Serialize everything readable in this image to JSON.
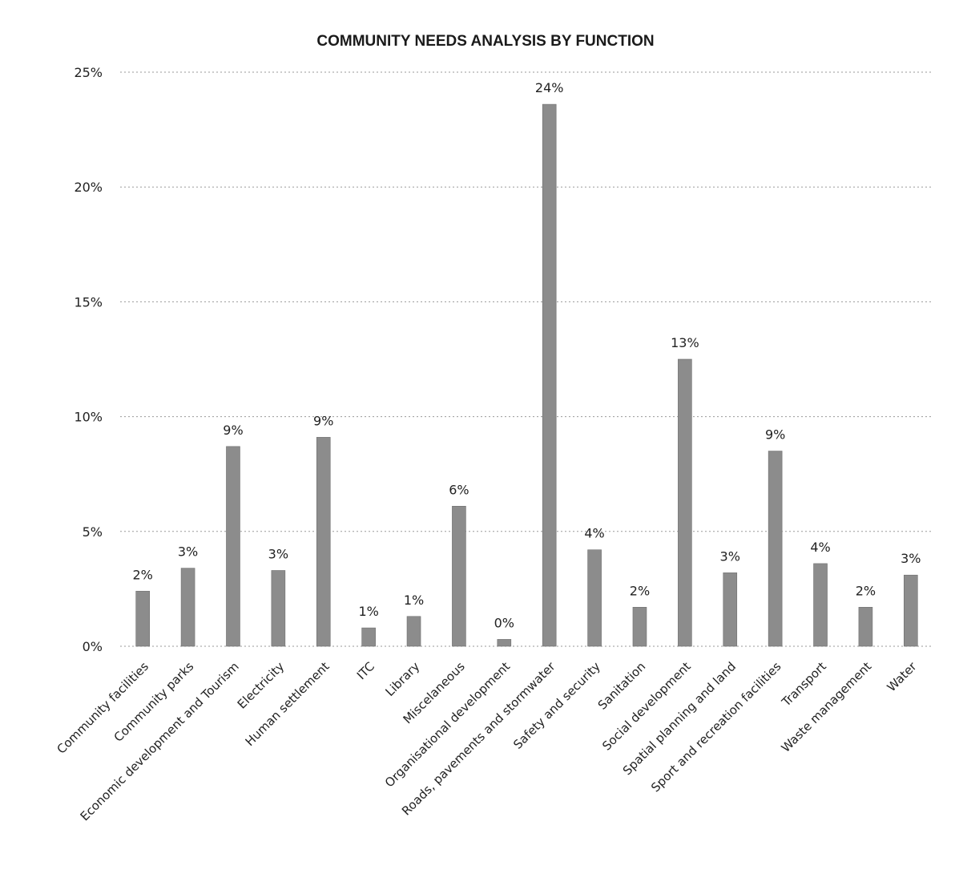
{
  "chart_data": {
    "type": "bar",
    "title": "COMMUNITY NEEDS ANALYSIS BY FUNCTION",
    "xlabel": "",
    "ylabel": "",
    "ylim": [
      0,
      25
    ],
    "yticks": [
      "0%",
      "5%",
      "10%",
      "15%",
      "20%",
      "25%"
    ],
    "grid": "horizontal dotted",
    "legend": "none",
    "bar_color": "#8c8c8c",
    "categories": [
      "Community facilities",
      "Community parks",
      "Economic development and Tourism",
      "Electricity",
      "Human settlement",
      "ITC",
      "Library",
      "Miscelaneous",
      "Organisational development",
      "Roads, pavements and stormwater",
      "Safety and security",
      "Sanitation",
      "Social development",
      "Spatial planning and land",
      "Sport and recreation facilities",
      "Transport",
      "Waste management",
      "Water"
    ],
    "values": [
      2.4,
      3.4,
      8.7,
      3.3,
      9.1,
      0.8,
      1.3,
      6.1,
      0.3,
      23.6,
      4.2,
      1.7,
      12.5,
      3.2,
      8.5,
      3.6,
      1.7,
      3.1
    ],
    "data_labels": [
      "2%",
      "3%",
      "9%",
      "3%",
      "9%",
      "1%",
      "1%",
      "6%",
      "0%",
      "24%",
      "4%",
      "2%",
      "13%",
      "3%",
      "9%",
      "4%",
      "2%",
      "3%"
    ]
  }
}
